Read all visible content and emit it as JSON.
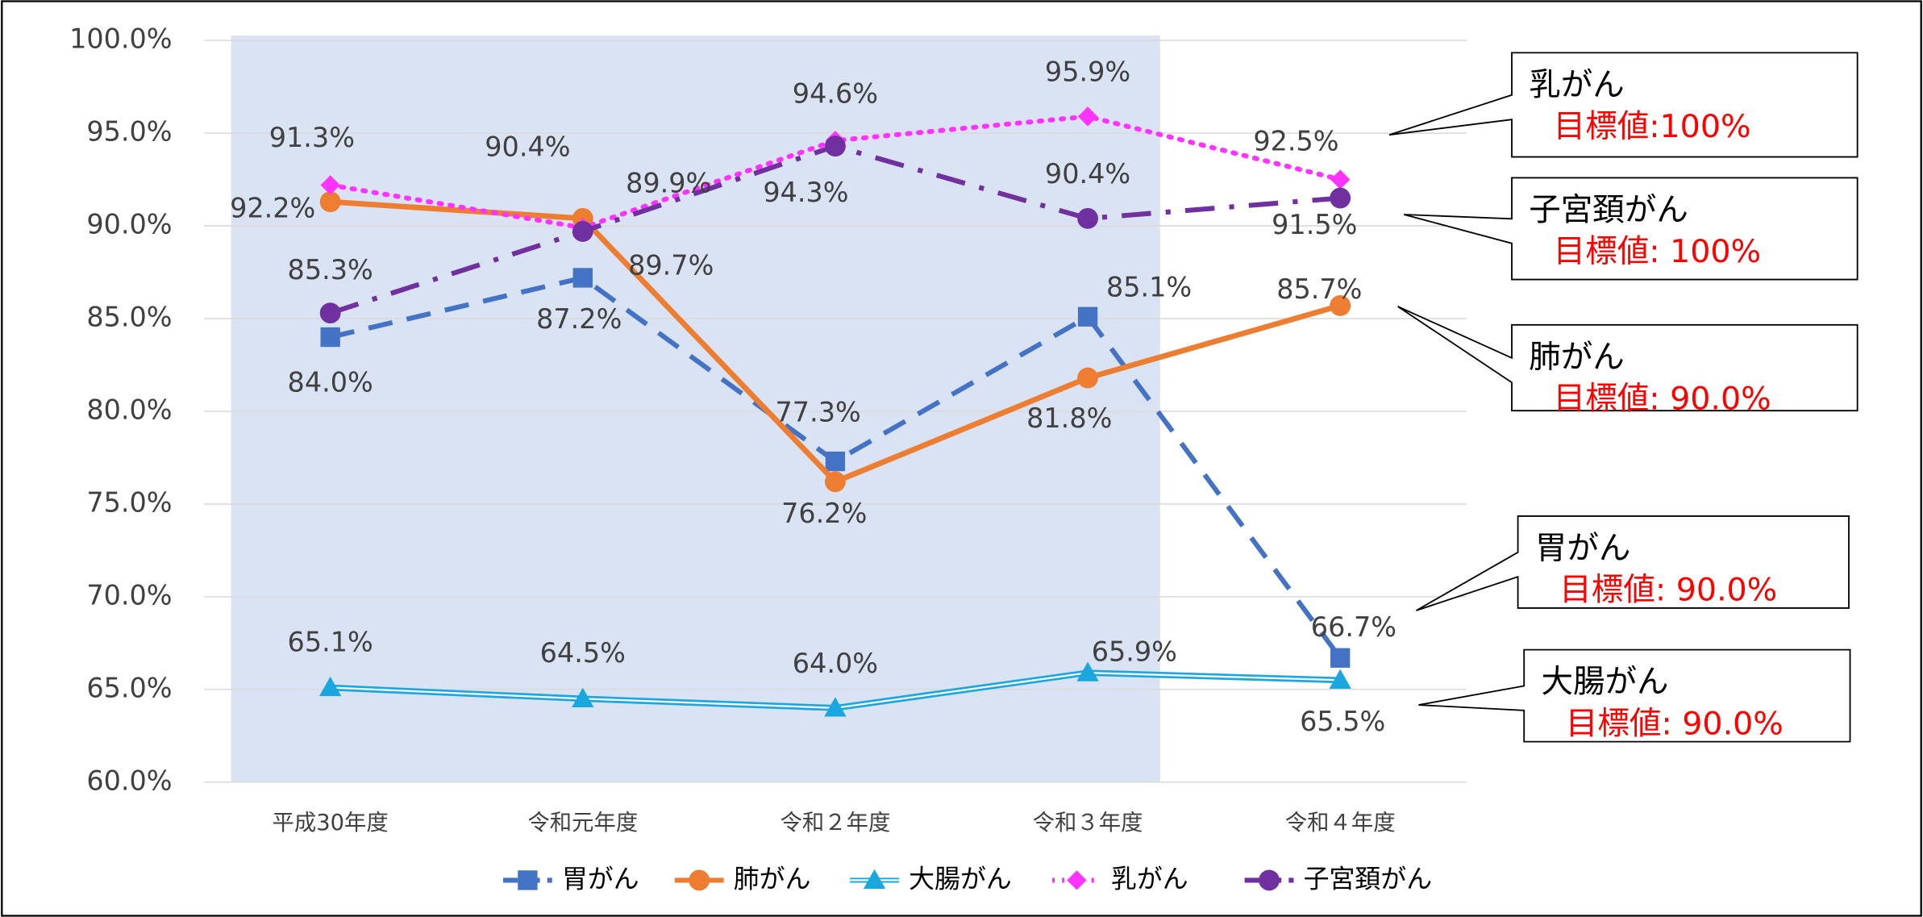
{
  "chart_data": {
    "type": "line",
    "categories": [
      "平成30年度",
      "令和元年度",
      "令和２年度",
      "令和３年度",
      "令和４年度"
    ],
    "ylim": [
      60,
      100
    ],
    "yticks": [
      {
        "value": 60,
        "label": "60.0%"
      },
      {
        "value": 65,
        "label": "65.0%"
      },
      {
        "value": 70,
        "label": "70.0%"
      },
      {
        "value": 75,
        "label": "75.0%"
      },
      {
        "value": 80,
        "label": "80.0%"
      },
      {
        "value": 85,
        "label": "85.0%"
      },
      {
        "value": 90,
        "label": "90.0%"
      },
      {
        "value": 95,
        "label": "95.0%"
      },
      {
        "value": 100,
        "label": "100.0%"
      }
    ],
    "grid": true,
    "series": [
      {
        "name": "胃がん",
        "color": "#4472c4",
        "style": "dashed",
        "marker": "square",
        "values": [
          84.0,
          87.2,
          77.3,
          85.1,
          66.7
        ],
        "value_labels": [
          "84.0%",
          "87.2%",
          "77.3%",
          "85.1%",
          "66.7%"
        ]
      },
      {
        "name": "肺がん",
        "color": "#ed7d31",
        "style": "solid",
        "marker": "circle",
        "values": [
          91.3,
          90.4,
          76.2,
          81.8,
          85.7
        ],
        "value_labels": [
          "91.3%",
          "90.4%",
          "76.2%",
          "81.8%",
          "85.7%"
        ]
      },
      {
        "name": "大腸がん",
        "color": "#1aa7e0",
        "style": "double",
        "marker": "triangle",
        "values": [
          65.1,
          64.5,
          64.0,
          65.9,
          65.5
        ],
        "value_labels": [
          "65.1%",
          "64.5%",
          "64.0%",
          "65.9%",
          "65.5%"
        ]
      },
      {
        "name": "乳がん",
        "color": "#ff33ff",
        "style": "dotted",
        "marker": "diamond",
        "values": [
          92.2,
          89.9,
          94.6,
          95.9,
          92.5
        ],
        "value_labels": [
          "92.2%",
          "89.9%",
          "94.6%",
          "95.9%",
          "92.5%"
        ]
      },
      {
        "name": "子宮頚がん",
        "color": "#7030a0",
        "style": "dashdot",
        "marker": "circle",
        "values": [
          85.3,
          89.7,
          94.3,
          90.4,
          91.5
        ],
        "value_labels": [
          "85.3%",
          "89.7%",
          "94.3%",
          "90.4%",
          "91.5%"
        ]
      }
    ],
    "annotations": [
      {
        "name": "乳がん",
        "target": "目標値:100%"
      },
      {
        "name": "子宮頚がん",
        "target": "目標値: 100%"
      },
      {
        "name": "肺がん",
        "target": "目標値: 90.0%"
      },
      {
        "name": "胃がん",
        "target": "目標値: 90.0%"
      },
      {
        "name": "大腸がん",
        "target": "目標値: 90.0%"
      }
    ]
  }
}
